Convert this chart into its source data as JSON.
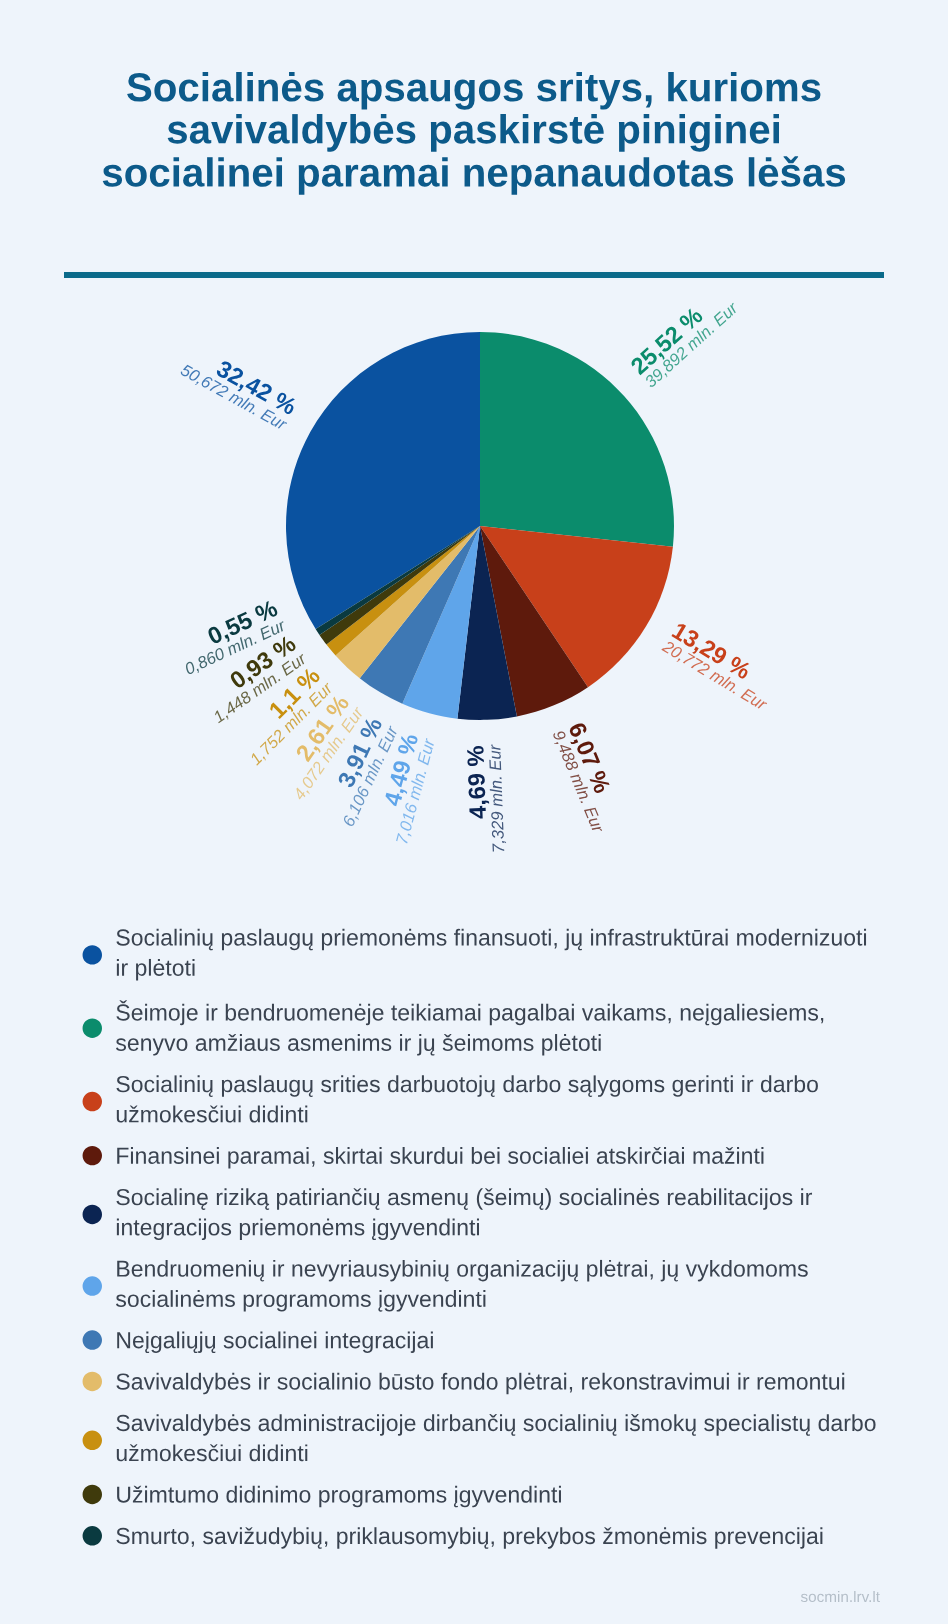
{
  "chart_data": {
    "type": "pie",
    "title": "Socialinės apsaugos sritys, kurioms savivaldybės paskirstė piniginei socialinei paramai nepanaudotas lėšas",
    "categories": [
      "Socialinių paslaugų priemonėms finansuoti, jų infrastruktūrai modernizuoti ir plėtoti",
      "Šeimoje ir bendruomenėje teikiamai pagalbai vaikams, neįgaliesiems, senyvo amžiaus asmenims ir jų šeimoms plėtoti",
      "Socialinių paslaugų srities darbuotojų darbo sąlygoms gerinti ir darbo užmokesčiui didinti",
      "Finansinei paramai, skirtai skurdui bei socialiei atskirčiai mažinti",
      "Socialinę riziką patiriančių asmenų (šeimų) socialinės reabilitacijos ir integracijos priemonėms įgyvendinti",
      "Bendruomenių ir nevyriausybinių organizacijų plėtrai, jų vykdomoms socialinėms programoms įgyvendinti",
      "Neįgaliųjų socialinei integracijai",
      "Savivaldybės ir socialinio būsto fondo plėtrai, rekonstravimui ir remontui",
      "Savivaldybės administracijoje dirbančių socialinių išmokų specialistų darbo užmokesčiui didinti",
      "Užimtumo didinimo programoms įgyvendinti",
      "Smurto, savižudybių, priklausomybių, prekybos žmonėmis prevencijai"
    ],
    "values": [
      50.672,
      39.892,
      20.772,
      9.488,
      7.329,
      7.016,
      6.106,
      4.072,
      1.752,
      1.448,
      0.86
    ],
    "colors": [
      "#0a52a0",
      "#0b8c6c",
      "#c8401a",
      "#5e1a0c",
      "#0b2452",
      "#5fa5ea",
      "#3e78b4",
      "#e3bc6a",
      "#c89010",
      "#3f3a0c",
      "#0a3a40"
    ],
    "value_labels": [
      "32,42 %\n50,672 mln. Eur",
      "25,52 %\n39,892 mln. Eur",
      "13,29 %\n20,772 mln. Eur",
      "6,07 %\n9,488 mln. Eur",
      "4,69 %\n7,329 mln. Eur",
      "4,49 %\n7,016 mln. Eur",
      "3,91 %\n6,106 mln. Eur",
      "2,61 %\n4,072 mln. Eur",
      "1,1 %\n1,752 mln. Eur",
      "0,93 %\n1,448 mln. Eur",
      "0,55 %\n0,860 mln. Eur"
    ],
    "legend": "bottom",
    "annotations": [
      "socmin.lrv.lt"
    ]
  }
}
